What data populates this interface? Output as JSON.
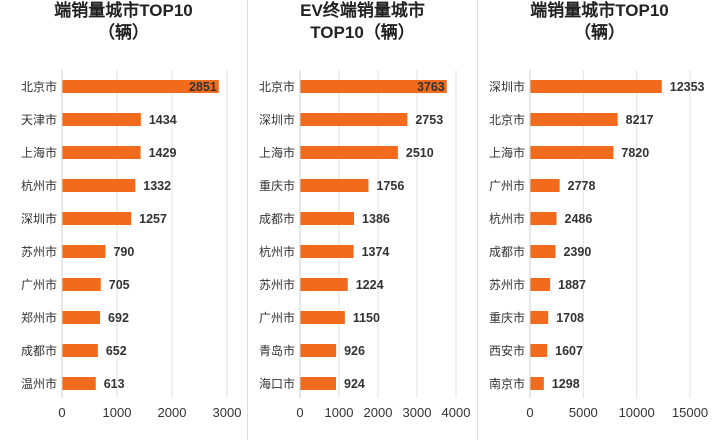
{
  "chart_data": [
    {
      "type": "bar",
      "orientation": "horizontal",
      "title_lines": [
        "",
        "端销量城市TOP10",
        "（辆）"
      ],
      "categories": [
        "北京市",
        "天津市",
        "上海市",
        "杭州市",
        "深圳市",
        "苏州市",
        "广州市",
        "郑州市",
        "成都市",
        "温州市"
      ],
      "values": [
        2851,
        1434,
        1429,
        1332,
        1257,
        790,
        705,
        692,
        652,
        613
      ],
      "xlim": [
        0,
        3000
      ],
      "xticks": [
        0,
        1000,
        2000,
        3000
      ],
      "color": "#F26B1D",
      "grid": true
    },
    {
      "type": "bar",
      "orientation": "horizontal",
      "title_lines": [
        "",
        "EV终端销量城市",
        "TOP10（辆）"
      ],
      "categories": [
        "北京市",
        "深圳市",
        "上海市",
        "重庆市",
        "成都市",
        "杭州市",
        "苏州市",
        "广州市",
        "青岛市",
        "海口市"
      ],
      "values": [
        3763,
        2753,
        2510,
        1756,
        1386,
        1374,
        1224,
        1150,
        926,
        924
      ],
      "xlim": [
        0,
        4000
      ],
      "xticks": [
        0,
        1000,
        2000,
        3000,
        4000
      ],
      "color": "#F26B1D",
      "grid": true
    },
    {
      "type": "bar",
      "orientation": "horizontal",
      "title_lines": [
        "",
        "端销量城市TOP10",
        "（辆）"
      ],
      "categories": [
        "深圳市",
        "北京市",
        "上海市",
        "广州市",
        "杭州市",
        "成都市",
        "苏州市",
        "重庆市",
        "西安市",
        "南京市"
      ],
      "values": [
        12353,
        8217,
        7820,
        2778,
        2486,
        2390,
        1887,
        1708,
        1607,
        1298
      ],
      "xlim": [
        0,
        15000
      ],
      "xticks": [
        0,
        5000,
        10000,
        15000
      ],
      "color": "#F26B1D",
      "grid": true
    }
  ]
}
